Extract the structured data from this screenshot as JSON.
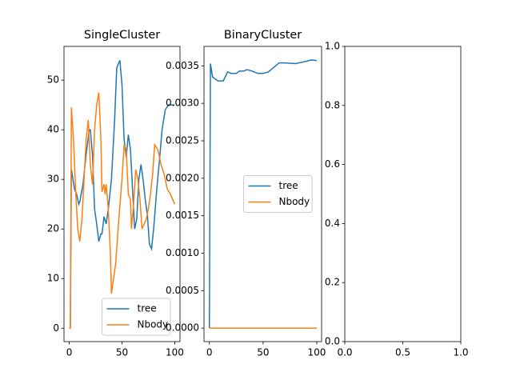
{
  "chart_data": [
    {
      "type": "line",
      "title": "SingleCluster",
      "xlim": [
        -5,
        105
      ],
      "ylim": [
        -2.7,
        56.8
      ],
      "xticks": [
        0,
        50,
        100
      ],
      "yticks": [
        0,
        10,
        20,
        30,
        40,
        50
      ],
      "legend": "lower right",
      "series": [
        {
          "name": "tree",
          "color": "#1f77b4",
          "x": [
            0,
            1,
            2,
            5,
            7,
            9,
            10,
            13,
            16,
            19,
            20,
            22,
            24,
            26,
            28,
            30,
            31,
            33,
            35,
            37,
            40,
            43,
            45,
            48,
            50,
            52,
            54,
            56,
            58,
            60,
            62,
            64,
            66,
            68,
            70,
            72,
            74,
            76,
            78,
            80,
            83,
            86,
            88,
            91,
            94,
            97,
            100
          ],
          "values": [
            0,
            0,
            32,
            28,
            27,
            25,
            25.5,
            29,
            35,
            40,
            40,
            35,
            24,
            21,
            17.5,
            19,
            19,
            22.5,
            21,
            24,
            30,
            42,
            52.5,
            54,
            49,
            38,
            34.5,
            39,
            36,
            28,
            20,
            22,
            30,
            33,
            30,
            26,
            23,
            17,
            16,
            20,
            28,
            35,
            40,
            44,
            45,
            45,
            45
          ]
        },
        {
          "name": "Nbody",
          "color": "#ff7f0e",
          "x": [
            0,
            1,
            2,
            4,
            6,
            8,
            10,
            12,
            14,
            16,
            18,
            20,
            22,
            24,
            26,
            28,
            30,
            31,
            33,
            34,
            35,
            37,
            39,
            40,
            42,
            44,
            47,
            50,
            52,
            54,
            56,
            58,
            59,
            61,
            63,
            65,
            67,
            69,
            71,
            73,
            75,
            77,
            79,
            81,
            84,
            87,
            90,
            93,
            96,
            100
          ],
          "values": [
            0,
            0,
            44.5,
            38,
            28,
            20,
            17.5,
            22,
            30,
            38,
            42,
            33,
            29,
            40,
            45,
            47.5,
            38,
            27.5,
            29,
            27,
            29,
            24,
            15,
            7,
            10,
            13,
            22,
            30,
            37,
            36,
            27,
            26,
            20,
            25,
            32,
            30,
            26,
            20,
            21,
            22,
            24,
            27,
            31,
            37,
            36,
            33,
            31,
            28,
            27,
            25
          ]
        }
      ]
    },
    {
      "type": "line",
      "title": "BinaryCluster",
      "xlim": [
        -5,
        104.5
      ],
      "ylim": [
        -0.00018,
        0.00376
      ],
      "xticks": [
        0,
        50,
        100
      ],
      "yticks": [
        {
          "value": 0,
          "label": "0.0000"
        },
        {
          "value": 0.0005,
          "label": "0.0005"
        },
        {
          "value": 0.001,
          "label": "0.0010"
        },
        {
          "value": 0.0015,
          "label": "0.0015"
        },
        {
          "value": 0.002,
          "label": "0.0020"
        },
        {
          "value": 0.0025,
          "label": "0.0025"
        },
        {
          "value": 0.003,
          "label": "0.0030"
        },
        {
          "value": 0.0035,
          "label": "0.0035"
        }
      ],
      "legend": "center right",
      "series": [
        {
          "name": "tree",
          "color": "#1f77b4",
          "x": [
            0,
            1,
            3,
            5,
            8,
            13,
            17,
            20,
            25,
            28,
            32,
            35,
            40,
            45,
            50,
            55,
            60,
            65,
            70,
            80,
            90,
            95,
            100
          ],
          "values": [
            0,
            0.00353,
            0.00335,
            0.00333,
            0.0033,
            0.0033,
            0.00342,
            0.0034,
            0.0034,
            0.00343,
            0.00343,
            0.00345,
            0.00343,
            0.0034,
            0.0034,
            0.00342,
            0.00348,
            0.00354,
            0.00354,
            0.00353,
            0.00356,
            0.00358,
            0.00357
          ]
        },
        {
          "name": "Nbody",
          "color": "#ff7f0e",
          "x": [
            0,
            100
          ],
          "values": [
            0,
            0
          ]
        }
      ]
    },
    {
      "type": "line",
      "xlim": [
        0,
        1
      ],
      "ylim": [
        0,
        1
      ],
      "xticks": [
        {
          "value": 0,
          "label": "0.0"
        },
        {
          "value": 0.5,
          "label": "0.5"
        },
        {
          "value": 1,
          "label": "1.0"
        }
      ],
      "yticks": [
        {
          "value": 0,
          "label": "0.0"
        },
        {
          "value": 0.2,
          "label": "0.2"
        },
        {
          "value": 0.4,
          "label": "0.4"
        },
        {
          "value": 0.6,
          "label": "0.6"
        },
        {
          "value": 0.8,
          "label": "0.8"
        },
        {
          "value": 1,
          "label": "1.0"
        }
      ],
      "series": []
    }
  ]
}
